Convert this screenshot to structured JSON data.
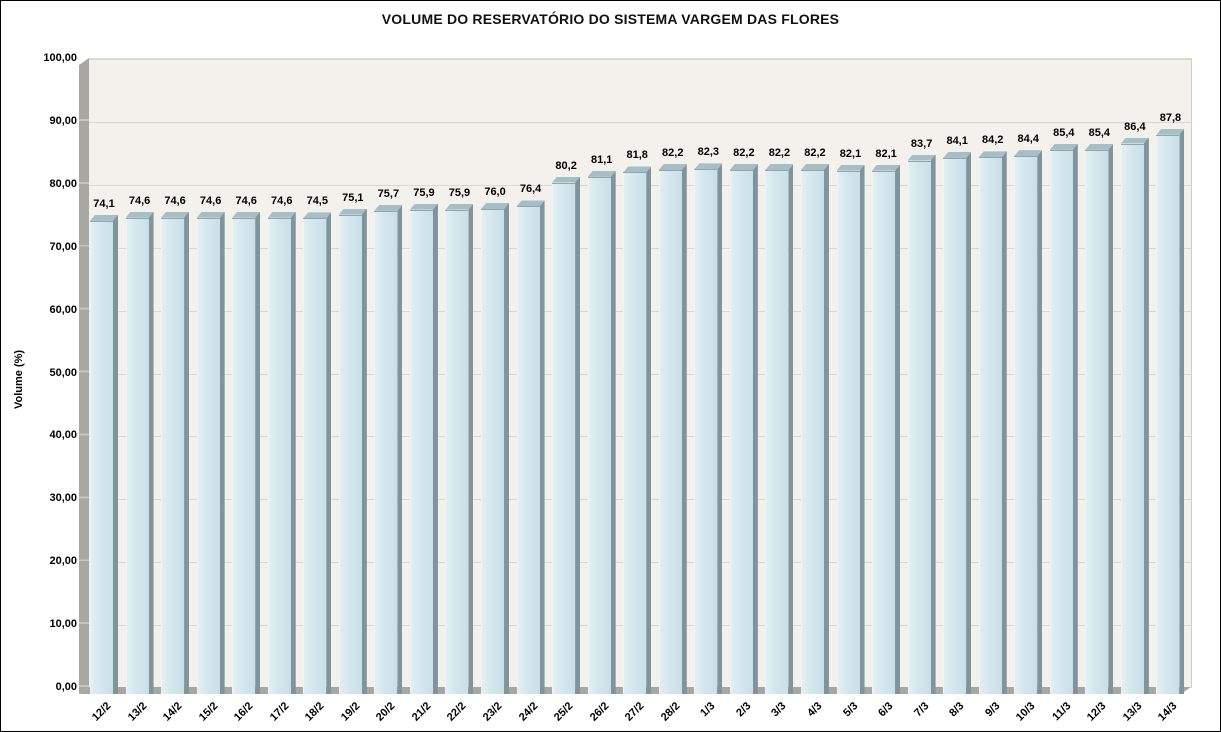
{
  "chart_data": {
    "type": "bar",
    "title": "VOLUME DO RESERVATÓRIO DO SISTEMA VARGEM DAS FLORES",
    "xlabel": "",
    "ylabel": "Volume (%)",
    "ylim": [
      0,
      100
    ],
    "ytick_step": 10,
    "ytick_labels": [
      "0,00",
      "10,00",
      "20,00",
      "30,00",
      "40,00",
      "50,00",
      "60,00",
      "70,00",
      "80,00",
      "90,00",
      "100,00"
    ],
    "grid": true,
    "legend": null,
    "categories": [
      "12/2",
      "13/2",
      "14/2",
      "15/2",
      "16/2",
      "17/2",
      "18/2",
      "19/2",
      "20/2",
      "21/2",
      "22/2",
      "23/2",
      "24/2",
      "25/2",
      "26/2",
      "27/2",
      "28/2",
      "1/3",
      "2/3",
      "3/3",
      "4/3",
      "5/3",
      "6/3",
      "7/3",
      "8/3",
      "9/3",
      "10/3",
      "11/3",
      "12/3",
      "13/3",
      "14/3"
    ],
    "values": [
      74.1,
      74.6,
      74.6,
      74.6,
      74.6,
      74.6,
      74.5,
      75.1,
      75.7,
      75.9,
      75.9,
      76.0,
      76.4,
      80.2,
      81.1,
      81.8,
      82.2,
      82.3,
      82.2,
      82.2,
      82.2,
      82.1,
      82.1,
      83.7,
      84.1,
      84.2,
      84.4,
      85.4,
      85.4,
      86.4,
      87.8
    ],
    "value_labels": [
      "74,1",
      "74,6",
      "74,6",
      "74,6",
      "74,6",
      "74,6",
      "74,5",
      "75,1",
      "75,7",
      "75,9",
      "75,9",
      "76,0",
      "76,4",
      "80,2",
      "81,1",
      "81,8",
      "82,2",
      "82,3",
      "82,2",
      "82,2",
      "82,2",
      "82,1",
      "82,1",
      "83,7",
      "84,1",
      "84,2",
      "84,4",
      "85,4",
      "85,4",
      "86,4",
      "87,8"
    ],
    "colors": {
      "bar_front": "#d4e7ed",
      "bar_side": "#7f949b",
      "bar_top": "#a6bec6",
      "plot_background": "#f3f1ec",
      "gridline": "#d8d7d1",
      "wall_floor": "#a8a8a2",
      "label_text": "#000000"
    }
  }
}
